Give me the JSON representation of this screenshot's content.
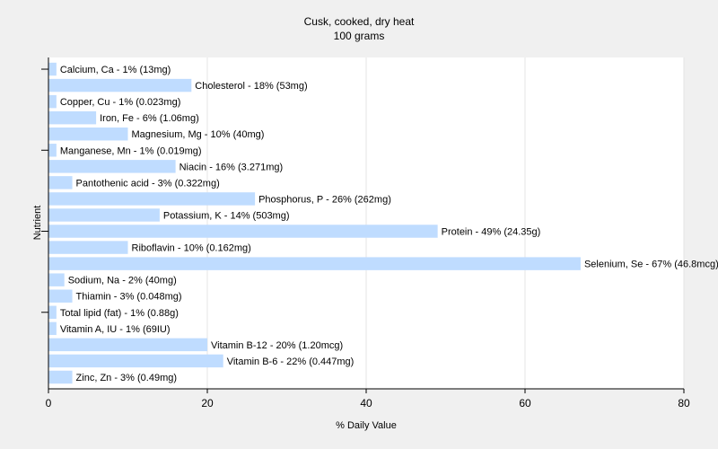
{
  "chart_data": {
    "type": "bar",
    "orientation": "horizontal",
    "title": "Cusk, cooked, dry heat",
    "subtitle": "100 grams",
    "xlabel": "% Daily Value",
    "ylabel": "Nutrient",
    "xlim": [
      0,
      80
    ],
    "xticks": [
      0,
      20,
      40,
      60,
      80
    ],
    "grid": true,
    "bar_color": "#bfdcff",
    "background": "#f0f0f0",
    "plot_background": "#ffffff",
    "categories": [
      "Calcium, Ca - 1% (13mg)",
      "Cholesterol - 18% (53mg)",
      "Copper, Cu - 1% (0.023mg)",
      "Iron, Fe - 6% (1.06mg)",
      "Magnesium, Mg - 10% (40mg)",
      "Manganese, Mn - 1% (0.019mg)",
      "Niacin - 16% (3.271mg)",
      "Pantothenic acid - 3% (0.322mg)",
      "Phosphorus, P - 26% (262mg)",
      "Potassium, K - 14% (503mg)",
      "Protein - 49% (24.35g)",
      "Riboflavin - 10% (0.162mg)",
      "Selenium, Se - 67% (46.8mcg)",
      "Sodium, Na - 2% (40mg)",
      "Thiamin - 3% (0.048mg)",
      "Total lipid (fat) - 1% (0.88g)",
      "Vitamin A, IU - 1% (69IU)",
      "Vitamin B-12 - 20% (1.20mcg)",
      "Vitamin B-6 - 22% (0.447mg)",
      "Zinc, Zn - 3% (0.49mg)"
    ],
    "values": [
      1,
      18,
      1,
      6,
      10,
      1,
      16,
      3,
      26,
      14,
      49,
      10,
      67,
      2,
      3,
      1,
      1,
      20,
      22,
      3
    ]
  }
}
